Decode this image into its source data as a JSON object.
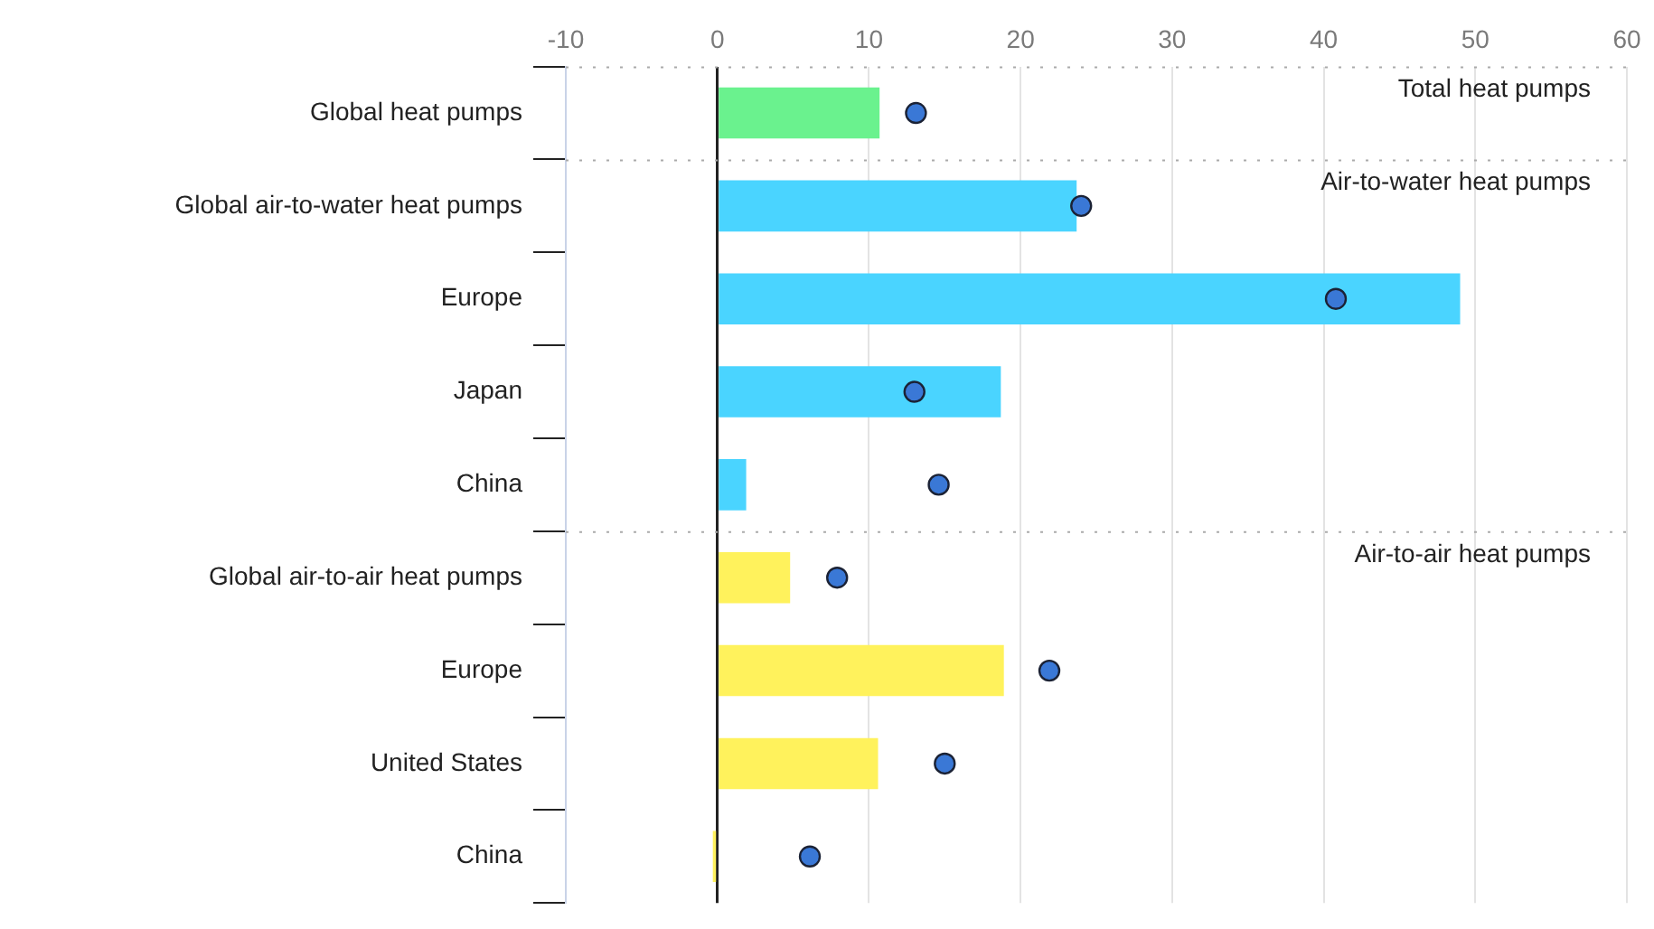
{
  "chart_data": {
    "type": "bar",
    "orientation": "horizontal",
    "categories": [
      "Global heat pumps",
      "Global air-to-water heat pumps",
      "Europe",
      "Japan",
      "China",
      "Global air-to-air heat pumps",
      "Europe",
      "United States",
      "China"
    ],
    "series": [
      {
        "colors": [
          "#6af28e",
          "#4ad4ff",
          "#4ad4ff",
          "#4ad4ff",
          "#4ad4ff",
          "#fff25c",
          "#fff25c",
          "#fff25c",
          "#fff25c"
        ],
        "values": [
          10.7,
          23.7,
          49.0,
          18.7,
          1.9,
          4.8,
          18.9,
          10.6,
          -0.3
        ]
      },
      {
        "type": "scatter",
        "color": "#3a78d6",
        "values": [
          13.1,
          24.0,
          40.8,
          13.0,
          14.6,
          7.9,
          21.9,
          15.0,
          6.1
        ]
      }
    ],
    "xlim": [
      -10,
      60
    ],
    "xticks": [
      -10,
      0,
      10,
      20,
      30,
      40,
      50,
      60
    ],
    "grid": "x",
    "legend": false,
    "marker": "circle",
    "annotations": [
      "Total heat pumps",
      "Air-to-water heat pumps",
      "Air-to-air heat pumps"
    ]
  }
}
